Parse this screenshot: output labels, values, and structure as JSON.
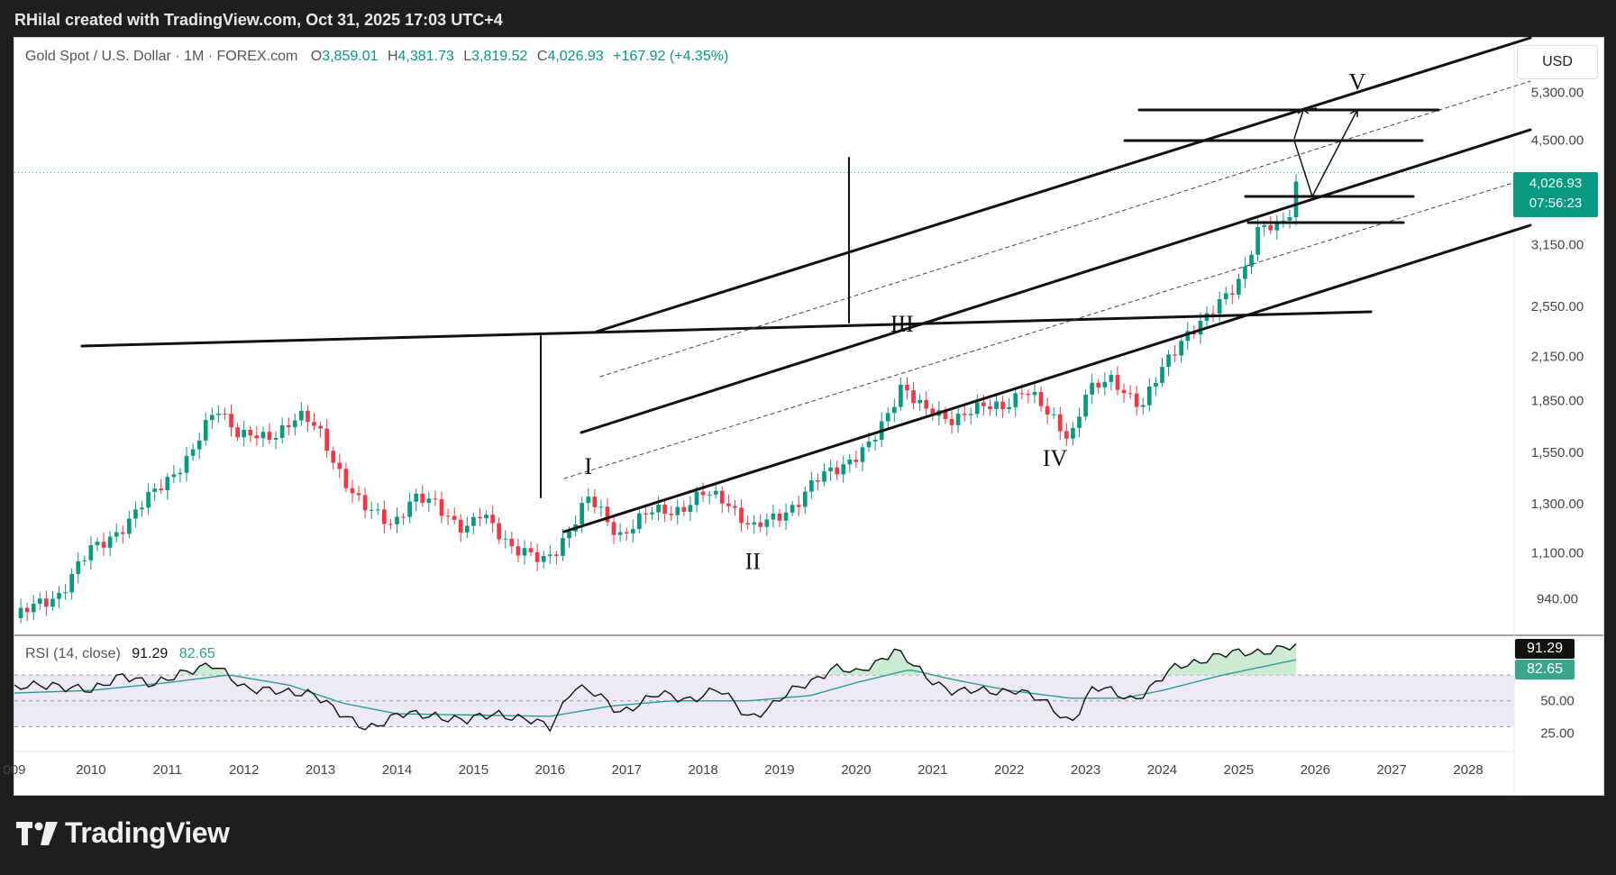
{
  "caption": "RHilal created with TradingView.com, Oct 31, 2025 17:03 UTC+4",
  "legend": {
    "symbol": "Gold Spot / U.S. Dollar · 1M · FOREX.com",
    "o_key": "O",
    "o": "3,859.01",
    "h_key": "H",
    "h": "4,381.73",
    "l_key": "L",
    "l": "3,819.52",
    "c_key": "C",
    "c": "4,026.93",
    "change": "+167.92 (+4.35%)"
  },
  "currency": "USD",
  "last_price": "4,026.93",
  "countdown": "07:56:23",
  "rsi": {
    "label": "RSI (14, close)",
    "rsi_value": "91.29",
    "ma_value": "82.65"
  },
  "footer": {
    "brand": "TradingView"
  },
  "colors": {
    "up": "#089981",
    "down": "#f23645",
    "line": "#111111",
    "rsi_ma": "#2a9d8f",
    "rsi_band": "#ede9f7"
  },
  "chart_data": {
    "type": "candlestick",
    "title": "Gold Spot / U.S. Dollar · 1M · FOREX.com",
    "y_scale": "log",
    "y_ticks": [
      {
        "value": 940,
        "label": "940.00"
      },
      {
        "value": 1100,
        "label": "1,100.00"
      },
      {
        "value": 1300,
        "label": "1,300.00"
      },
      {
        "value": 1550,
        "label": "1,550.00"
      },
      {
        "value": 1850,
        "label": "1,850.00"
      },
      {
        "value": 2150,
        "label": "2,150.00"
      },
      {
        "value": 2550,
        "label": "2,550.00"
      },
      {
        "value": 3150,
        "label": "3,150.00"
      },
      {
        "value": 4500,
        "label": "4,500.00"
      },
      {
        "value": 5300,
        "label": "5,300.00"
      }
    ],
    "x_ticks": [
      "009",
      "2010",
      "2011",
      "2012",
      "2013",
      "2014",
      "2015",
      "2016",
      "2017",
      "2018",
      "2019",
      "2020",
      "2021",
      "2022",
      "2023",
      "2024",
      "2025",
      "2026",
      "2027",
      "2028"
    ],
    "x_range": [
      2009.0,
      2028.6
    ],
    "y_range": [
      830,
      6000
    ],
    "anchors": [
      [
        2009.0,
        880
      ],
      [
        2009.6,
        960
      ],
      [
        2010.0,
        1110
      ],
      [
        2010.5,
        1220
      ],
      [
        2010.9,
        1390
      ],
      [
        2011.3,
        1520
      ],
      [
        2011.65,
        1820
      ],
      [
        2011.95,
        1640
      ],
      [
        2012.3,
        1620
      ],
      [
        2012.7,
        1760
      ],
      [
        2012.95,
        1680
      ],
      [
        2013.3,
        1420
      ],
      [
        2013.55,
        1280
      ],
      [
        2013.95,
        1220
      ],
      [
        2014.2,
        1320
      ],
      [
        2014.5,
        1300
      ],
      [
        2014.9,
        1190
      ],
      [
        2015.1,
        1250
      ],
      [
        2015.5,
        1130
      ],
      [
        2015.9,
        1060
      ],
      [
        2016.1,
        1120
      ],
      [
        2016.5,
        1320
      ],
      [
        2016.9,
        1170
      ],
      [
        2017.3,
        1260
      ],
      [
        2017.7,
        1280
      ],
      [
        2018.0,
        1340
      ],
      [
        2018.3,
        1320
      ],
      [
        2018.65,
        1190
      ],
      [
        2018.9,
        1230
      ],
      [
        2019.2,
        1300
      ],
      [
        2019.5,
        1410
      ],
      [
        2019.9,
        1510
      ],
      [
        2020.2,
        1590
      ],
      [
        2020.4,
        1740
      ],
      [
        2020.6,
        1970
      ],
      [
        2020.9,
        1780
      ],
      [
        2021.2,
        1730
      ],
      [
        2021.5,
        1800
      ],
      [
        2021.9,
        1800
      ],
      [
        2022.2,
        1940
      ],
      [
        2022.5,
        1760
      ],
      [
        2022.8,
        1630
      ],
      [
        2023.0,
        1900
      ],
      [
        2023.35,
        1980
      ],
      [
        2023.75,
        1820
      ],
      [
        2024.0,
        2050
      ],
      [
        2024.3,
        2330
      ],
      [
        2024.6,
        2450
      ],
      [
        2024.85,
        2650
      ],
      [
        2025.05,
        2860
      ],
      [
        2025.25,
        3300
      ],
      [
        2025.5,
        3340
      ],
      [
        2025.65,
        3450
      ],
      [
        2025.72,
        3850
      ],
      [
        2025.83,
        4026.93
      ]
    ],
    "wave_labels": [
      {
        "text": "I",
        "x": 2016.5,
        "y": 1440
      },
      {
        "text": "II",
        "x": 2018.65,
        "y": 1040
      },
      {
        "text": "III",
        "x": 2020.6,
        "y": 2340
      },
      {
        "text": "IV",
        "x": 2022.6,
        "y": 1480
      },
      {
        "text": "V",
        "x": 2026.55,
        "y": 5350
      }
    ],
    "rsi": {
      "y_ticks": [
        {
          "value": 50,
          "label": "50.00"
        },
        {
          "value": 25,
          "label": "25.00"
        }
      ],
      "band": [
        30,
        70
      ],
      "anchors": [
        [
          2009.0,
          58
        ],
        [
          2009.5,
          64
        ],
        [
          2010.0,
          56
        ],
        [
          2010.4,
          72
        ],
        [
          2010.8,
          60
        ],
        [
          2011.2,
          74
        ],
        [
          2011.6,
          76
        ],
        [
          2012.0,
          62
        ],
        [
          2012.5,
          55
        ],
        [
          2012.9,
          58
        ],
        [
          2013.3,
          36
        ],
        [
          2013.6,
          30
        ],
        [
          2014.0,
          38
        ],
        [
          2014.5,
          40
        ],
        [
          2014.9,
          33
        ],
        [
          2015.3,
          42
        ],
        [
          2015.7,
          34
        ],
        [
          2016.0,
          30
        ],
        [
          2016.3,
          62
        ],
        [
          2016.6,
          54
        ],
        [
          2016.9,
          42
        ],
        [
          2017.4,
          54
        ],
        [
          2017.8,
          52
        ],
        [
          2018.2,
          58
        ],
        [
          2018.6,
          38
        ],
        [
          2018.9,
          46
        ],
        [
          2019.3,
          62
        ],
        [
          2019.7,
          76
        ],
        [
          2020.0,
          70
        ],
        [
          2020.5,
          90
        ],
        [
          2020.9,
          68
        ],
        [
          2021.3,
          58
        ],
        [
          2021.7,
          56
        ],
        [
          2022.1,
          60
        ],
        [
          2022.5,
          46
        ],
        [
          2022.8,
          34
        ],
        [
          2023.1,
          60
        ],
        [
          2023.6,
          52
        ],
        [
          2023.8,
          58
        ],
        [
          2024.2,
          76
        ],
        [
          2024.6,
          84
        ],
        [
          2025.0,
          86
        ],
        [
          2025.4,
          90
        ],
        [
          2025.83,
          91.29
        ]
      ],
      "ma_anchors": [
        [
          2009.0,
          56
        ],
        [
          2010.0,
          58
        ],
        [
          2011.0,
          64
        ],
        [
          2011.8,
          70
        ],
        [
          2012.6,
          62
        ],
        [
          2013.3,
          48
        ],
        [
          2014.0,
          40
        ],
        [
          2015.0,
          39
        ],
        [
          2016.0,
          38
        ],
        [
          2016.8,
          46
        ],
        [
          2017.6,
          50
        ],
        [
          2018.6,
          50
        ],
        [
          2019.4,
          54
        ],
        [
          2020.0,
          64
        ],
        [
          2020.7,
          74
        ],
        [
          2021.3,
          66
        ],
        [
          2022.0,
          58
        ],
        [
          2022.8,
          52
        ],
        [
          2023.5,
          52
        ],
        [
          2024.0,
          58
        ],
        [
          2024.8,
          70
        ],
        [
          2025.83,
          82.65
        ]
      ]
    }
  }
}
